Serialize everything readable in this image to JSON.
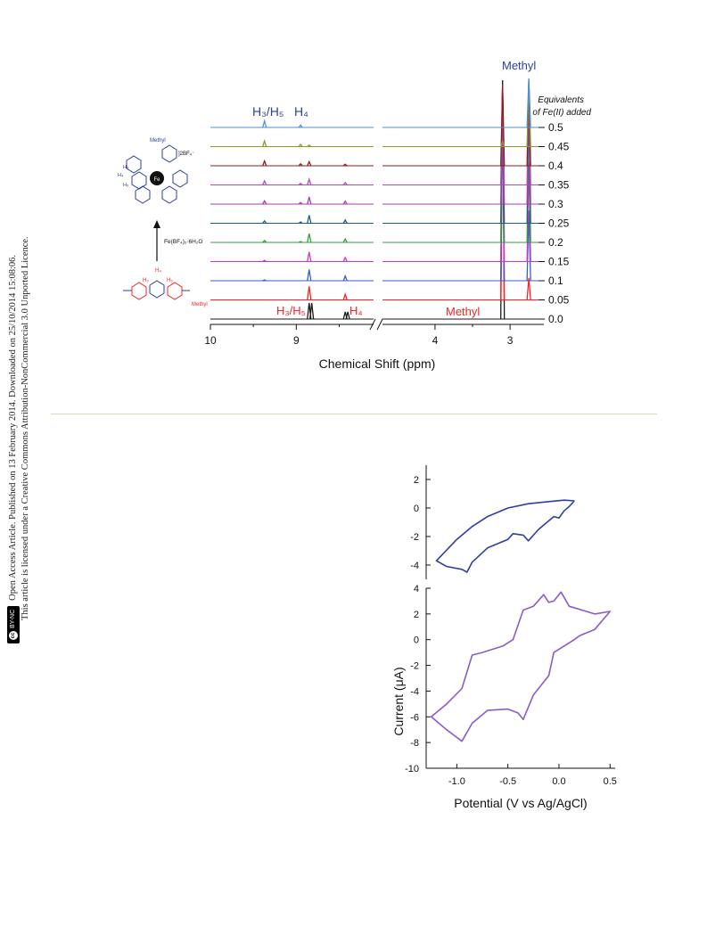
{
  "side_notice": {
    "license_badge": "BY-NC",
    "line1": "Open Access Article. Published on 13 February 2014. Downloaded on 25/10/2014 15:08:06.",
    "line2": "This article is licensed under a Creative Commons Attribution-NonCommercial 3.0 Unported Licence."
  },
  "scheme": {
    "top_complex_label": "Methyl",
    "counter_ion": "]2BF₄⁻",
    "metal": "Fe",
    "ring_labels": [
      "H₃",
      "H₄",
      "H₅"
    ],
    "reagent": "Fe(BF₄)₂·6H₂O",
    "ligand_labels": [
      "H₄",
      "H₃",
      "H₅"
    ],
    "ligand_methyl": "Methyl"
  },
  "chart_data": [
    {
      "type": "line",
      "title": "",
      "xlabel": "Chemical Shift (ppm)",
      "x_ticks": [
        "10",
        "9",
        "4",
        "3"
      ],
      "xlim_left_segment": [
        10,
        8.1
      ],
      "xlim_right_segment": [
        4.7,
        2.55
      ],
      "axis_break": "//",
      "legend_title": "Equivalents of Fe(II) added",
      "annotations_top": {
        "h3h5": "H₃/H₅",
        "h4": "H₄",
        "methyl": "Methyl"
      },
      "annotations_bottom": {
        "h3h5": "H₃/H₅",
        "h4": "H₄",
        "methyl": "Methyl"
      },
      "series": [
        {
          "name": "0.0",
          "color": "#1a1a1a",
          "peaks_ppm": [
            {
              "x": 8.85,
              "h": 1.0
            },
            {
              "x": 8.82,
              "h": 1.0
            },
            {
              "x": 8.43,
              "h": 0.45
            },
            {
              "x": 8.4,
              "h": 0.45
            },
            {
              "x": 3.1,
              "h": 1.0
            }
          ]
        },
        {
          "name": "0.05",
          "color": "#ff2020",
          "peaks_ppm": [
            {
              "x": 8.85,
              "h": 0.85
            },
            {
              "x": 8.43,
              "h": 0.35
            },
            {
              "x": 3.1,
              "h": 0.95
            },
            {
              "x": 2.75,
              "h": 0.1
            }
          ]
        },
        {
          "name": "0.1",
          "color": "#3d5bc4",
          "peaks_ppm": [
            {
              "x": 9.37,
              "h": 0.05
            },
            {
              "x": 8.85,
              "h": 0.7
            },
            {
              "x": 8.43,
              "h": 0.3
            },
            {
              "x": 3.1,
              "h": 0.95
            },
            {
              "x": 2.75,
              "h": 0.35
            }
          ]
        },
        {
          "name": "0.15",
          "color": "#c43ac9",
          "peaks_ppm": [
            {
              "x": 9.37,
              "h": 0.08
            },
            {
              "x": 8.85,
              "h": 0.6
            },
            {
              "x": 8.43,
              "h": 0.25
            },
            {
              "x": 3.1,
              "h": 0.95
            },
            {
              "x": 2.75,
              "h": 0.55
            }
          ]
        },
        {
          "name": "0.2",
          "color": "#2f9e3a",
          "peaks_ppm": [
            {
              "x": 9.37,
              "h": 0.12
            },
            {
              "x": 8.95,
              "h": 0.05
            },
            {
              "x": 8.85,
              "h": 0.55
            },
            {
              "x": 8.43,
              "h": 0.22
            },
            {
              "x": 3.1,
              "h": 0.95
            },
            {
              "x": 2.75,
              "h": 0.8
            }
          ]
        },
        {
          "name": "0.25",
          "color": "#1f5f7a",
          "peaks_ppm": [
            {
              "x": 9.37,
              "h": 0.15
            },
            {
              "x": 8.95,
              "h": 0.08
            },
            {
              "x": 8.85,
              "h": 0.5
            },
            {
              "x": 8.43,
              "h": 0.2
            },
            {
              "x": 3.1,
              "h": 0.95
            },
            {
              "x": 2.75,
              "h": 0.9
            }
          ]
        },
        {
          "name": "0.3",
          "color": "#a53cb0",
          "peaks_ppm": [
            {
              "x": 9.37,
              "h": 0.2
            },
            {
              "x": 8.95,
              "h": 0.1
            },
            {
              "x": 8.85,
              "h": 0.45
            },
            {
              "x": 8.43,
              "h": 0.18
            },
            {
              "x": 3.1,
              "h": 0.95
            },
            {
              "x": 2.75,
              "h": 0.95
            }
          ]
        },
        {
          "name": "0.35",
          "color": "#b04ab8",
          "peaks_ppm": [
            {
              "x": 9.37,
              "h": 0.25
            },
            {
              "x": 8.95,
              "h": 0.1
            },
            {
              "x": 8.85,
              "h": 0.35
            },
            {
              "x": 8.43,
              "h": 0.15
            },
            {
              "x": 3.1,
              "h": 0.95
            },
            {
              "x": 2.75,
              "h": 1.0
            }
          ]
        },
        {
          "name": "0.4",
          "color": "#8b1c1c",
          "peaks_ppm": [
            {
              "x": 9.37,
              "h": 0.3
            },
            {
              "x": 8.95,
              "h": 0.12
            },
            {
              "x": 8.85,
              "h": 0.25
            },
            {
              "x": 8.43,
              "h": 0.1
            },
            {
              "x": 3.1,
              "h": 0.95
            },
            {
              "x": 2.75,
              "h": 1.0
            }
          ]
        },
        {
          "name": "0.45",
          "color": "#8c9a2c",
          "peaks_ppm": [
            {
              "x": 9.37,
              "h": 0.35
            },
            {
              "x": 8.95,
              "h": 0.14
            },
            {
              "x": 8.85,
              "h": 0.1
            },
            {
              "x": 3.1,
              "h": 0.08
            },
            {
              "x": 2.75,
              "h": 1.0
            }
          ]
        },
        {
          "name": "0.5",
          "color": "#4a90d9",
          "peaks_ppm": [
            {
              "x": 9.37,
              "h": 0.4
            },
            {
              "x": 8.95,
              "h": 0.15
            },
            {
              "x": 2.75,
              "h": 1.6
            }
          ]
        }
      ]
    },
    {
      "type": "line",
      "title": "",
      "xlabel": "Potential (V vs Ag/AgCl)",
      "ylabel": "Current (μA)",
      "panels": [
        {
          "name": "top",
          "color": "#2e3fa0",
          "ylim": [
            -5,
            3
          ],
          "yticks": [
            "2",
            "0",
            "-2",
            "-4"
          ],
          "points": [
            [
              0.15,
              0.5
            ],
            [
              0.05,
              0.55
            ],
            [
              -0.1,
              0.45
            ],
            [
              -0.3,
              0.3
            ],
            [
              -0.5,
              0.0
            ],
            [
              -0.7,
              -0.6
            ],
            [
              -0.85,
              -1.3
            ],
            [
              -1.0,
              -2.2
            ],
            [
              -1.2,
              -3.7
            ],
            [
              -1.1,
              -4.1
            ],
            [
              -0.95,
              -4.3
            ],
            [
              -0.9,
              -4.5
            ],
            [
              -0.85,
              -3.8
            ],
            [
              -0.7,
              -2.8
            ],
            [
              -0.5,
              -2.2
            ],
            [
              -0.45,
              -1.8
            ],
            [
              -0.35,
              -1.9
            ],
            [
              -0.3,
              -2.3
            ],
            [
              -0.2,
              -1.5
            ],
            [
              -0.1,
              -0.9
            ],
            [
              -0.05,
              -0.6
            ],
            [
              0.0,
              -0.7
            ],
            [
              0.05,
              -0.2
            ],
            [
              0.1,
              0.1
            ],
            [
              0.15,
              0.5
            ]
          ]
        },
        {
          "name": "bottom",
          "color": "#8a5cc8",
          "ylim": [
            -10,
            4
          ],
          "yticks": [
            "4",
            "2",
            "0",
            "-2",
            "-4",
            "-6",
            "-8",
            "-10"
          ],
          "xticks": [
            "-1.0",
            "-0.5",
            "0.0",
            "0.5"
          ],
          "xlim": [
            -1.3,
            0.55
          ],
          "points": [
            [
              0.2,
              0.3
            ],
            [
              0.35,
              0.8
            ],
            [
              0.5,
              2.2
            ],
            [
              0.35,
              2.0
            ],
            [
              0.1,
              2.6
            ],
            [
              0.02,
              3.7
            ],
            [
              -0.05,
              3.0
            ],
            [
              -0.1,
              2.9
            ],
            [
              -0.15,
              3.5
            ],
            [
              -0.25,
              2.6
            ],
            [
              -0.35,
              2.3
            ],
            [
              -0.45,
              0.0
            ],
            [
              -0.55,
              -0.5
            ],
            [
              -0.75,
              -1.0
            ],
            [
              -0.85,
              -1.2
            ],
            [
              -0.95,
              -3.8
            ],
            [
              -1.1,
              -5.0
            ],
            [
              -1.25,
              -6.0
            ],
            [
              -1.1,
              -7.0
            ],
            [
              -0.95,
              -7.9
            ],
            [
              -0.85,
              -6.5
            ],
            [
              -0.7,
              -5.5
            ],
            [
              -0.5,
              -5.4
            ],
            [
              -0.4,
              -5.7
            ],
            [
              -0.35,
              -6.2
            ],
            [
              -0.25,
              -4.3
            ],
            [
              -0.15,
              -3.3
            ],
            [
              -0.1,
              -2.8
            ],
            [
              -0.05,
              -1.0
            ],
            [
              0.05,
              -0.5
            ],
            [
              0.15,
              0.0
            ],
            [
              0.2,
              0.3
            ]
          ]
        }
      ]
    }
  ]
}
